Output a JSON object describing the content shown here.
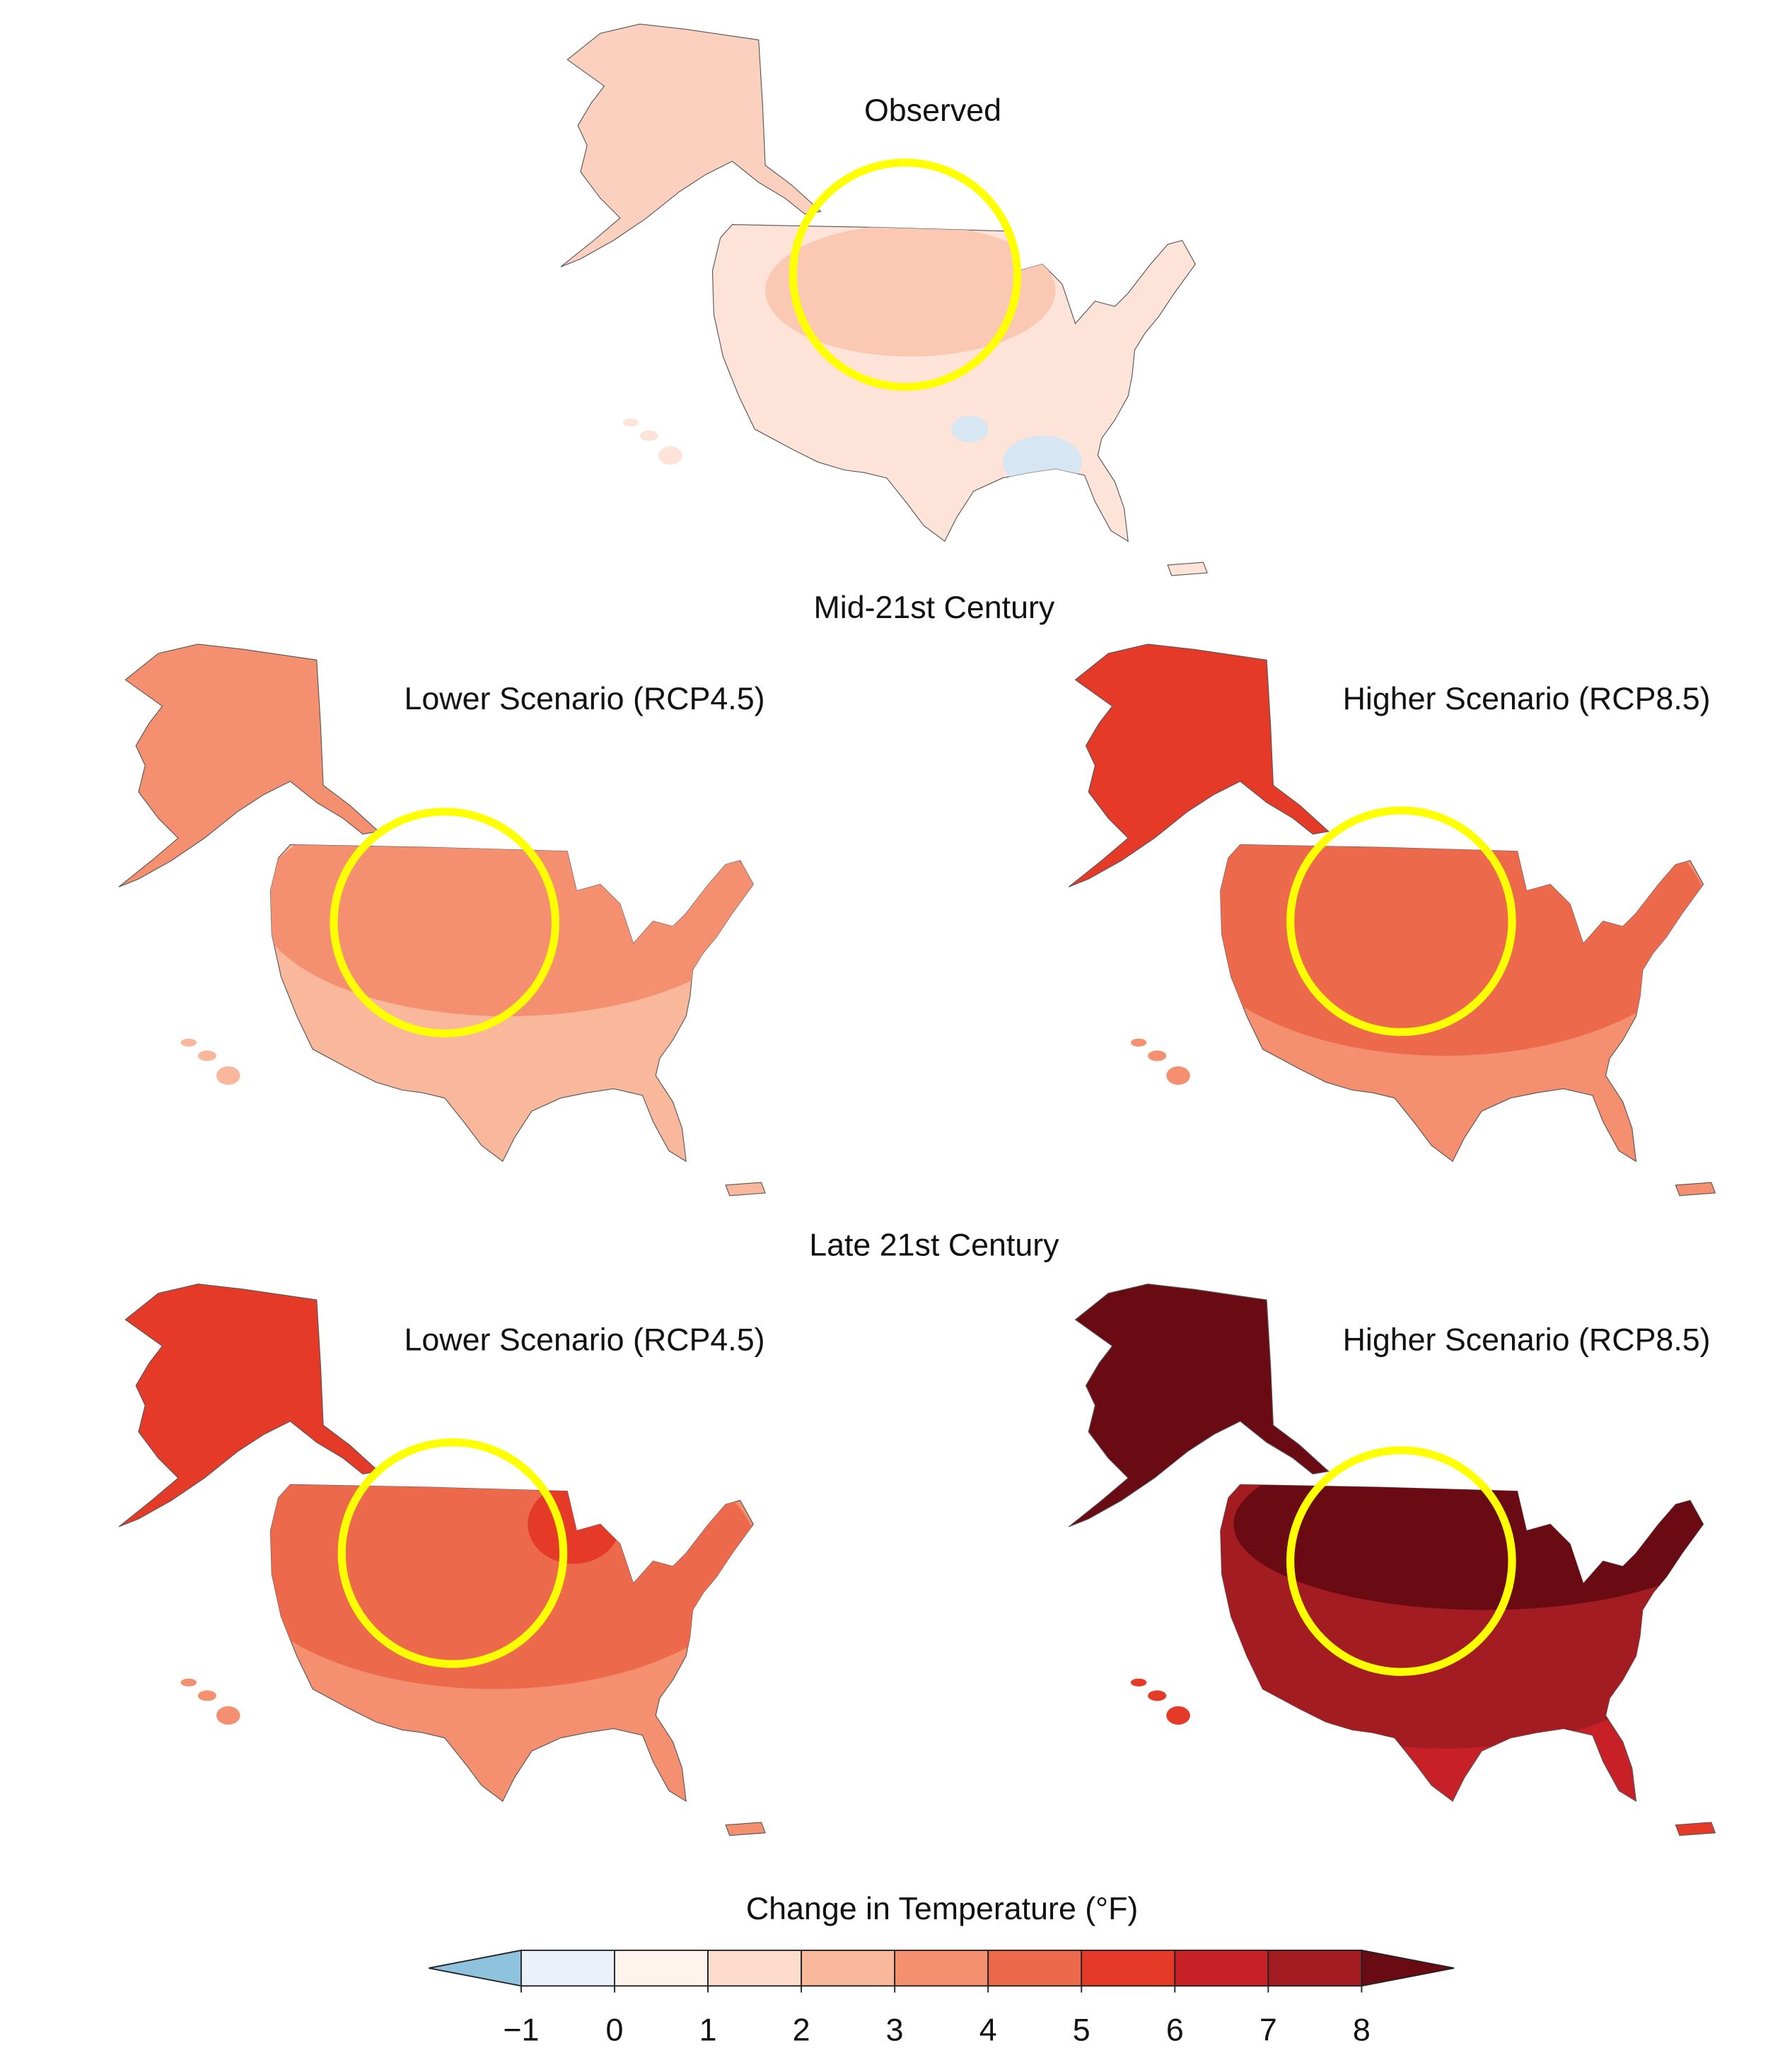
{
  "panels": [
    {
      "title": "Observed"
    },
    {
      "title": "Lower Scenario (RCP4.5)"
    },
    {
      "title": "Higher Scenario (RCP8.5)"
    },
    {
      "title": "Lower Scenario (RCP4.5)"
    },
    {
      "title": "Higher Scenario (RCP8.5)"
    }
  ],
  "section_titles": [
    "Mid-21st Century",
    "Late 21st Century"
  ],
  "colorbar": {
    "title": "Change in Temperature (°F)",
    "ticks": [
      {
        "value": -1,
        "label": "−1"
      },
      0,
      1,
      2,
      3,
      4,
      5,
      6,
      7,
      8
    ],
    "colors": [
      "#8fc3dd",
      "#eaf1f9",
      "#fff3ee",
      "#fddccd",
      "#f9b89c",
      "#f4906f",
      "#ec6a4b",
      "#e63a28",
      "#c72027",
      "#a21c22",
      "#6a0a12"
    ]
  }
}
